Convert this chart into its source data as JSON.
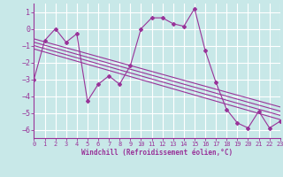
{
  "background_color": "#c8e8e8",
  "grid_color": "#aad8d8",
  "line_color": "#993399",
  "xlabel": "Windchill (Refroidissement éolien,°C)",
  "xlim": [
    0,
    23
  ],
  "ylim": [
    -6.5,
    1.5
  ],
  "yticks": [
    -6,
    -5,
    -4,
    -3,
    -2,
    -1,
    0,
    1
  ],
  "xticks": [
    0,
    1,
    2,
    3,
    4,
    5,
    6,
    7,
    8,
    9,
    10,
    11,
    12,
    13,
    14,
    15,
    16,
    17,
    18,
    19,
    20,
    21,
    22,
    23
  ],
  "main_x": [
    0,
    1,
    2,
    3,
    4,
    5,
    6,
    7,
    8,
    9,
    10,
    11,
    12,
    13,
    14,
    15,
    16,
    17,
    18,
    19,
    20,
    21,
    22,
    23
  ],
  "main_y": [
    -3.0,
    -0.7,
    -0.0,
    -0.8,
    -0.3,
    -4.3,
    -3.3,
    -2.8,
    -3.3,
    -2.2,
    0.0,
    0.65,
    0.65,
    0.3,
    0.15,
    1.2,
    -1.3,
    -3.2,
    -4.8,
    -5.6,
    -5.9,
    -4.9,
    -5.9,
    -5.5
  ],
  "trend_lines": [
    {
      "x0": 0,
      "y0": -0.6,
      "x1": 23,
      "y1": -4.65
    },
    {
      "x0": 0,
      "y0": -0.8,
      "x1": 23,
      "y1": -4.9
    },
    {
      "x0": 0,
      "y0": -1.0,
      "x1": 23,
      "y1": -5.15
    },
    {
      "x0": 0,
      "y0": -1.2,
      "x1": 23,
      "y1": -5.4
    }
  ]
}
